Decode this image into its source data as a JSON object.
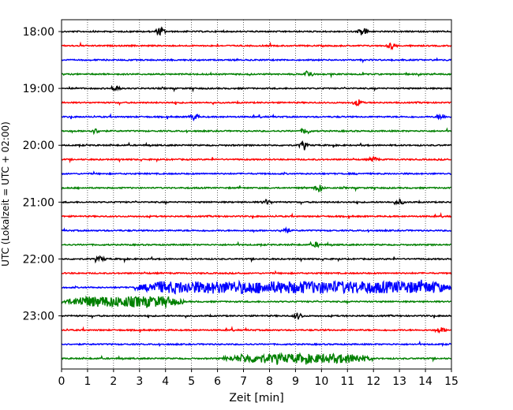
{
  "chart_data": {
    "type": "line",
    "title": "",
    "xlabel": "Zeit  [min]",
    "ylabel": "UTC (Lokalzeit = UTC + 02:00)",
    "xlim": [
      0,
      15
    ],
    "x_ticks": [
      "0",
      "1",
      "2",
      "3",
      "4",
      "5",
      "6",
      "7",
      "8",
      "9",
      "10",
      "11",
      "12",
      "13",
      "14",
      "15"
    ],
    "y_tick_labels": [
      "18:00",
      "19:00",
      "20:00",
      "21:00",
      "22:00",
      "23:00"
    ],
    "grid": "vertical dotted",
    "trace_interval_minutes": 15,
    "trace_colors": [
      "#000000",
      "#ff0000",
      "#0000ff",
      "#008000"
    ],
    "traces": [
      {
        "start": "18:00",
        "color": "#000000",
        "events": [
          {
            "x": 3.8,
            "amp": 5
          },
          {
            "x": 11.6,
            "amp": 6
          }
        ]
      },
      {
        "start": "18:15",
        "color": "#ff0000",
        "events": [
          {
            "x": 12.7,
            "amp": 4
          }
        ]
      },
      {
        "start": "18:30",
        "color": "#0000ff",
        "events": []
      },
      {
        "start": "18:45",
        "color": "#008000",
        "events": [
          {
            "x": 9.5,
            "amp": 5
          }
        ]
      },
      {
        "start": "19:00",
        "color": "#000000",
        "events": [
          {
            "x": 2.1,
            "amp": 4
          }
        ]
      },
      {
        "start": "19:15",
        "color": "#ff0000",
        "events": [
          {
            "x": 11.4,
            "amp": 4
          }
        ]
      },
      {
        "start": "19:30",
        "color": "#0000ff",
        "events": [
          {
            "x": 5.1,
            "amp": 4
          },
          {
            "x": 14.6,
            "amp": 4
          }
        ]
      },
      {
        "start": "19:45",
        "color": "#008000",
        "events": [
          {
            "x": 1.3,
            "amp": 3
          },
          {
            "x": 9.4,
            "amp": 4
          }
        ]
      },
      {
        "start": "20:00",
        "color": "#000000",
        "events": [
          {
            "x": 9.3,
            "amp": 4
          }
        ]
      },
      {
        "start": "20:15",
        "color": "#ff0000",
        "events": [
          {
            "x": 12.0,
            "amp": 3
          }
        ]
      },
      {
        "start": "20:30",
        "color": "#0000ff",
        "events": []
      },
      {
        "start": "20:45",
        "color": "#008000",
        "events": [
          {
            "x": 9.9,
            "amp": 5
          }
        ]
      },
      {
        "start": "21:00",
        "color": "#000000",
        "events": [
          {
            "x": 7.9,
            "amp": 3
          },
          {
            "x": 13.0,
            "amp": 3
          }
        ]
      },
      {
        "start": "21:15",
        "color": "#ff0000",
        "events": []
      },
      {
        "start": "21:30",
        "color": "#0000ff",
        "events": [
          {
            "x": 8.6,
            "amp": 4
          }
        ]
      },
      {
        "start": "21:45",
        "color": "#008000",
        "events": [
          {
            "x": 9.8,
            "amp": 3
          }
        ]
      },
      {
        "start": "22:00",
        "color": "#000000",
        "events": [
          {
            "x": 1.5,
            "amp": 3
          }
        ]
      },
      {
        "start": "22:15",
        "color": "#ff0000",
        "events": []
      },
      {
        "start": "22:30",
        "color": "#0000ff",
        "burst": {
          "from": 2.8,
          "to": 15.0,
          "amp": 7
        }
      },
      {
        "start": "22:45",
        "color": "#008000",
        "burst": {
          "from": 0.0,
          "to": 4.7,
          "amp": 6
        }
      },
      {
        "start": "23:00",
        "color": "#000000",
        "events": [
          {
            "x": 9.1,
            "amp": 4
          }
        ]
      },
      {
        "start": "23:15",
        "color": "#ff0000",
        "events": [
          {
            "x": 14.6,
            "amp": 3
          }
        ]
      },
      {
        "start": "23:30",
        "color": "#0000ff",
        "events": []
      },
      {
        "start": "23:45",
        "color": "#008000",
        "burst": {
          "from": 6.2,
          "to": 12.0,
          "amp": 5
        }
      }
    ]
  }
}
